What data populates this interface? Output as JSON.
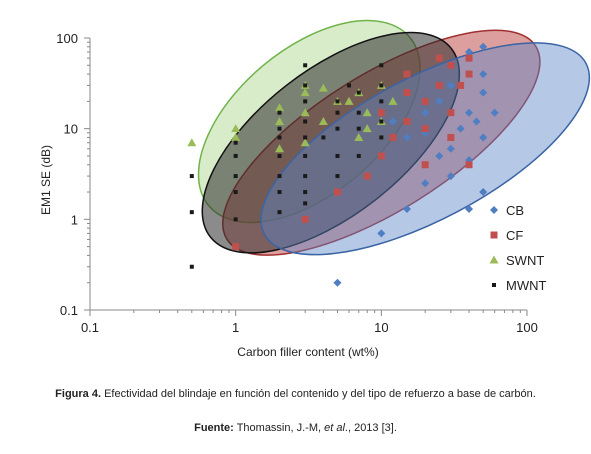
{
  "chart_data": {
    "type": "scatter",
    "x_scale": "log",
    "y_scale": "log",
    "xlim": [
      0.1,
      100
    ],
    "ylim": [
      0.1,
      100
    ],
    "xlabel": "Carbon filler content (wt%)",
    "ylabel": "EM1 SE (dB)",
    "x_ticks": [
      0.1,
      1,
      10,
      100
    ],
    "x_tick_labels": [
      "0.1",
      "1",
      "10",
      "100"
    ],
    "y_ticks": [
      0.1,
      1,
      10,
      100
    ],
    "y_tick_labels": [
      "0.1",
      "1",
      "10",
      "100"
    ],
    "grid": false,
    "legend": "right",
    "series": [
      {
        "name": "CB",
        "marker": "diamond",
        "color": "#4f7ec2",
        "points": [
          [
            5,
            0.2
          ],
          [
            10,
            0.7
          ],
          [
            15,
            1.3
          ],
          [
            40,
            1.3
          ],
          [
            50,
            2
          ],
          [
            20,
            2.5
          ],
          [
            30,
            3
          ],
          [
            40,
            4.5
          ],
          [
            50,
            8
          ],
          [
            60,
            15
          ],
          [
            30,
            6
          ],
          [
            45,
            12
          ],
          [
            25,
            20
          ],
          [
            35,
            10
          ],
          [
            20,
            9
          ],
          [
            15,
            8
          ],
          [
            25,
            5
          ],
          [
            40,
            15
          ],
          [
            50,
            25
          ],
          [
            50,
            40
          ],
          [
            50,
            80
          ],
          [
            40,
            70
          ],
          [
            30,
            30
          ],
          [
            20,
            15
          ],
          [
            10,
            5
          ],
          [
            12,
            12
          ]
        ]
      },
      {
        "name": "CF",
        "marker": "square",
        "color": "#c0504d",
        "points": [
          [
            1,
            0.5
          ],
          [
            3,
            1
          ],
          [
            5,
            2
          ],
          [
            8,
            3
          ],
          [
            10,
            5
          ],
          [
            12,
            8
          ],
          [
            15,
            12
          ],
          [
            20,
            4
          ],
          [
            20,
            20
          ],
          [
            25,
            30
          ],
          [
            30,
            50
          ],
          [
            35,
            30
          ],
          [
            40,
            60
          ],
          [
            40,
            40
          ],
          [
            30,
            15
          ],
          [
            20,
            10
          ],
          [
            15,
            40
          ],
          [
            25,
            60
          ],
          [
            40,
            4
          ],
          [
            10,
            15
          ],
          [
            15,
            25
          ],
          [
            30,
            8
          ]
        ]
      },
      {
        "name": "SWNT",
        "marker": "triangle",
        "color": "#9bbb59",
        "points": [
          [
            0.5,
            7
          ],
          [
            1,
            10
          ],
          [
            1,
            8
          ],
          [
            2,
            17
          ],
          [
            3,
            25
          ],
          [
            3,
            30
          ],
          [
            4,
            28
          ],
          [
            6,
            20
          ],
          [
            7,
            25
          ],
          [
            8,
            15
          ],
          [
            10,
            30
          ],
          [
            12,
            20
          ],
          [
            2,
            12
          ],
          [
            3,
            15
          ],
          [
            4,
            12
          ],
          [
            5,
            20
          ],
          [
            7,
            8
          ],
          [
            8,
            10
          ],
          [
            10,
            12
          ],
          [
            3,
            7
          ],
          [
            2,
            6
          ]
        ]
      },
      {
        "name": "MWNT",
        "marker": "square-small",
        "color": "#1a1a1a",
        "points": [
          [
            0.5,
            0.3
          ],
          [
            0.5,
            1.2
          ],
          [
            0.5,
            3
          ],
          [
            1,
            1
          ],
          [
            1,
            2
          ],
          [
            1,
            3
          ],
          [
            1,
            5
          ],
          [
            1,
            7
          ],
          [
            2,
            1.2
          ],
          [
            2,
            2
          ],
          [
            2,
            3
          ],
          [
            2,
            5
          ],
          [
            2,
            8
          ],
          [
            2,
            10
          ],
          [
            2,
            15
          ],
          [
            3,
            1.5
          ],
          [
            3,
            2
          ],
          [
            3,
            3
          ],
          [
            3,
            5
          ],
          [
            3,
            8
          ],
          [
            3,
            12
          ],
          [
            3,
            20
          ],
          [
            3,
            30
          ],
          [
            3,
            50
          ],
          [
            5,
            3
          ],
          [
            5,
            5
          ],
          [
            5,
            10
          ],
          [
            5,
            15
          ],
          [
            5,
            20
          ],
          [
            7,
            5
          ],
          [
            7,
            10
          ],
          [
            7,
            15
          ],
          [
            7,
            25
          ],
          [
            10,
            8
          ],
          [
            10,
            12
          ],
          [
            10,
            20
          ],
          [
            10,
            30
          ],
          [
            10,
            50
          ],
          [
            4,
            8
          ],
          [
            6,
            30
          ]
        ]
      }
    ],
    "ellipses": [
      {
        "series": "SWNT",
        "fill": "#a8d48a",
        "stroke": "#6fb34a",
        "opacity": 0.45,
        "cx": 3.2,
        "cy": 12,
        "rx_dec": 0.9,
        "ry_dec": 0.8,
        "angle": -40
      },
      {
        "series": "CF",
        "fill": "#c0504d",
        "stroke": "#a03030",
        "opacity": 0.55,
        "cx": 10,
        "cy": 7,
        "rx_dec": 1.25,
        "ry_dec": 0.75,
        "angle": -32
      },
      {
        "series": "MWNT",
        "fill": "#2c2c2c",
        "stroke": "#111111",
        "opacity": 0.55,
        "cx": 4.5,
        "cy": 7,
        "rx_dec": 1.05,
        "ry_dec": 0.8,
        "angle": -38
      },
      {
        "series": "CB",
        "fill": "#5b86c7",
        "stroke": "#3a64a5",
        "opacity": 0.45,
        "cx": 20,
        "cy": 6,
        "rx_dec": 1.25,
        "ry_dec": 0.78,
        "angle": -28
      }
    ]
  },
  "caption": {
    "figure_label": "Figura 4.",
    "figure_text": " Efectividad del blindaje en función del contenido y del tipo de refuerzo a base de carbón.",
    "source_label": "Fuente:",
    "source_author": " Thomassin, J.-M, ",
    "source_etal": "et al",
    "source_rest": "., 2013 [3]."
  }
}
